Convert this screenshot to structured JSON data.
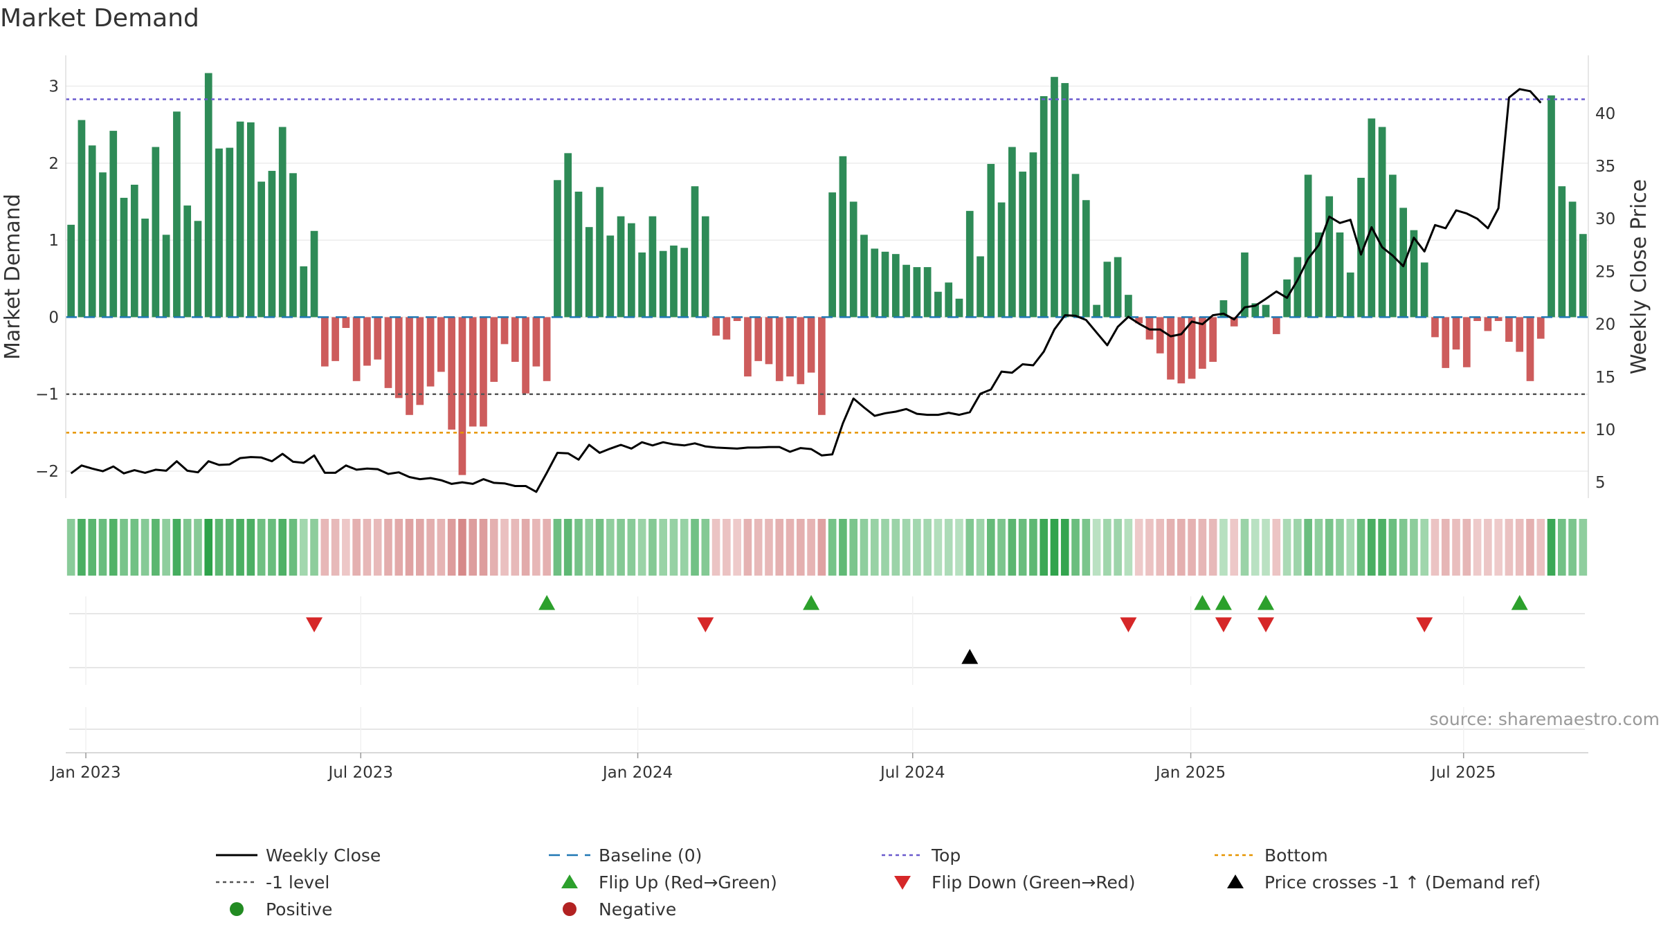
{
  "chart_data": {
    "type": "bar",
    "title": "Market Demand",
    "ylabel": "Market Demand",
    "y2label": "Weekly Close Price",
    "ylim": [
      -2.35,
      3.4
    ],
    "y2lim": [
      3.5,
      45.5
    ],
    "yticks": [
      -2,
      -1,
      0,
      1,
      2,
      3
    ],
    "yticklabels": [
      "−2",
      "−1",
      "0",
      "1",
      "2",
      "3"
    ],
    "y2ticks": [
      5,
      10,
      15,
      20,
      25,
      30,
      35,
      40
    ],
    "y2ticklabels": [
      "5",
      "10",
      "15",
      "20",
      "25",
      "30",
      "35",
      "40"
    ],
    "xticks": [
      {
        "label": "Jan 2023",
        "week": 1.4
      },
      {
        "label": "Jul 2023",
        "week": 27.4
      },
      {
        "label": "Jan 2024",
        "week": 53.6
      },
      {
        "label": "Jul 2024",
        "week": 79.6
      },
      {
        "label": "Jan 2025",
        "week": 105.9
      },
      {
        "label": "Jul 2025",
        "week": 131.7
      }
    ],
    "series": [
      {
        "name": "Market Demand",
        "values": [
          1.2,
          2.56,
          2.23,
          1.88,
          2.42,
          1.55,
          1.72,
          1.28,
          2.21,
          1.07,
          2.67,
          1.45,
          1.25,
          3.17,
          2.19,
          2.2,
          2.54,
          2.53,
          1.76,
          1.9,
          2.47,
          1.87,
          0.66,
          1.12,
          -0.64,
          -0.57,
          -0.14,
          -0.83,
          -0.63,
          -0.55,
          -0.92,
          -1.05,
          -1.27,
          -1.14,
          -0.9,
          -0.71,
          -1.46,
          -2.05,
          -1.42,
          -1.42,
          -0.84,
          -0.35,
          -0.58,
          -0.99,
          -0.64,
          -0.83,
          1.78,
          2.13,
          1.63,
          1.17,
          1.69,
          1.06,
          1.31,
          1.22,
          0.84,
          1.31,
          0.86,
          0.93,
          0.9,
          1.7,
          1.31,
          -0.24,
          -0.29,
          -0.05,
          -0.77,
          -0.57,
          -0.61,
          -0.83,
          -0.77,
          -0.87,
          -0.72,
          -1.27,
          1.62,
          2.09,
          1.5,
          1.07,
          0.89,
          0.85,
          0.82,
          0.68,
          0.65,
          0.65,
          0.33,
          0.45,
          0.24,
          1.38,
          0.79,
          1.99,
          1.49,
          2.21,
          1.89,
          2.14,
          2.87,
          3.12,
          3.04,
          1.86,
          1.52,
          0.16,
          0.72,
          0.78,
          0.29,
          -0.08,
          -0.29,
          -0.47,
          -0.81,
          -0.86,
          -0.8,
          -0.67,
          -0.58,
          0.22,
          -0.12,
          0.84,
          0.18,
          0.16,
          -0.22,
          0.49,
          0.78,
          1.85,
          1.1,
          1.57,
          1.1,
          0.58,
          1.81,
          2.58,
          2.47,
          1.85,
          1.42,
          1.13,
          0.71,
          -0.26,
          -0.66,
          -0.42,
          -0.65,
          -0.05,
          -0.18,
          -0.05,
          -0.32,
          -0.45,
          -0.83,
          -0.28,
          2.88,
          1.7,
          1.5,
          1.08
        ]
      },
      {
        "name": "Weekly Close",
        "values": [
          5.85,
          6.6,
          6.3,
          6.05,
          6.5,
          5.85,
          6.15,
          5.9,
          6.2,
          6.1,
          7.0,
          6.1,
          5.95,
          7.0,
          6.65,
          6.7,
          7.3,
          7.4,
          7.35,
          7.0,
          7.7,
          6.95,
          6.85,
          7.55,
          5.9,
          5.9,
          6.6,
          6.2,
          6.3,
          6.25,
          5.8,
          5.95,
          5.5,
          5.3,
          5.4,
          5.2,
          4.85,
          5.0,
          4.85,
          5.3,
          4.95,
          4.9,
          4.65,
          4.65,
          4.1,
          5.9,
          7.8,
          7.75,
          7.15,
          8.55,
          7.8,
          8.2,
          8.55,
          8.2,
          8.8,
          8.5,
          8.8,
          8.6,
          8.5,
          8.7,
          8.4,
          8.3,
          8.25,
          8.2,
          8.3,
          8.3,
          8.35,
          8.35,
          7.9,
          8.25,
          8.15,
          7.55,
          7.65,
          10.6,
          12.95,
          12.1,
          11.3,
          11.55,
          11.7,
          11.95,
          11.5,
          11.4,
          11.4,
          11.6,
          11.4,
          11.65,
          13.4,
          13.8,
          15.5,
          15.4,
          16.2,
          16.1,
          17.4,
          19.5,
          20.85,
          20.8,
          20.4,
          19.2,
          18.0,
          19.75,
          20.7,
          20.05,
          19.5,
          19.5,
          18.85,
          19.05,
          20.25,
          20.0,
          20.85,
          21.0,
          20.45,
          21.6,
          21.75,
          22.4,
          23.1,
          22.5,
          24.2,
          26.2,
          27.5,
          30.2,
          29.6,
          29.9,
          26.6,
          29.2,
          27.3,
          26.5,
          25.5,
          28.2,
          26.9,
          29.4,
          29.1,
          30.8,
          30.5,
          30.0,
          29.1,
          31.0,
          41.5,
          42.3,
          42.1,
          41.0
        ]
      }
    ],
    "reference_lines": [
      {
        "name": "Baseline (0)",
        "value": 0,
        "color": "#1f77b4",
        "style": "dashed"
      },
      {
        "name": "Top",
        "value": 2.83,
        "color": "#6a5acd",
        "style": "dotted"
      },
      {
        "name": "-1 level",
        "value": -1.0,
        "color": "#555555",
        "style": "dotted"
      },
      {
        "name": "Bottom",
        "value": -1.5,
        "color": "#e69500",
        "style": "dotted"
      }
    ],
    "flip_up_weeks": [
      45,
      70,
      107,
      109,
      113,
      137
    ],
    "flip_down_weeks": [
      23,
      60,
      100,
      109,
      113,
      128
    ],
    "price_cross_weeks": [
      85
    ],
    "source": "source: sharemaestro.com",
    "legend": [
      {
        "label": "Weekly Close",
        "marker": "line",
        "color": "#000000"
      },
      {
        "label": "Baseline (0)",
        "marker": "dash",
        "color": "#1f77b4"
      },
      {
        "label": "Top",
        "marker": "dot",
        "color": "#6a5acd"
      },
      {
        "label": "Bottom",
        "marker": "dot",
        "color": "#e69500"
      },
      {
        "label": "-1 level",
        "marker": "dot",
        "color": "#555555"
      },
      {
        "label": "Flip Up (Red→Green)",
        "marker": "triangle-up",
        "color": "#2ca02c"
      },
      {
        "label": "Flip Down (Green→Red)",
        "marker": "triangle-down",
        "color": "#d62728"
      },
      {
        "label": "Price crosses -1 ↑ (Demand ref)",
        "marker": "triangle-up",
        "color": "#000000"
      },
      {
        "label": "Positive",
        "marker": "circle",
        "color": "#228b22"
      },
      {
        "label": "Negative",
        "marker": "circle",
        "color": "#b22222"
      }
    ],
    "colors": {
      "positive": "#2e8b57",
      "negative": "#cd5c5c",
      "price": "#000000",
      "flip_up": "#2ca02c",
      "flip_down": "#d62728",
      "cross": "#000000"
    }
  }
}
